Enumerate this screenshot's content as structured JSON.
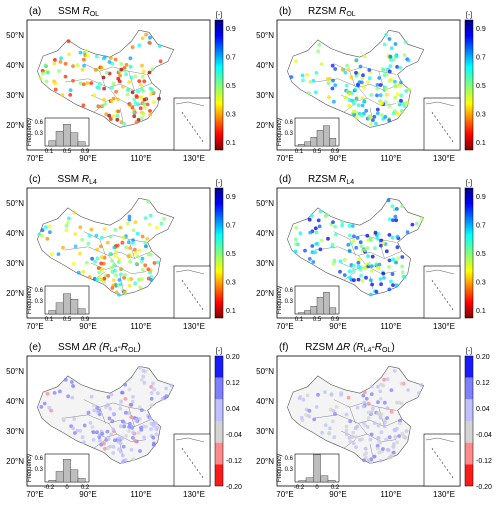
{
  "panels": [
    {
      "letter": "(a)",
      "var": "SSM",
      "metric": "R",
      "sub": "OL",
      "type": "R",
      "colorbar_unit": "[-]",
      "hist_ylabel": "Frequency",
      "hist_yticks": [
        "0.6",
        "0.3"
      ],
      "hist_xticks": [
        "0.1",
        "0.5",
        "0.9"
      ],
      "hist_values": [
        0.15,
        0.42,
        0.62,
        0.38,
        0.12
      ]
    },
    {
      "letter": "(b)",
      "var": "RZSM",
      "metric": "R",
      "sub": "OL",
      "type": "R",
      "colorbar_unit": "[-]",
      "hist_ylabel": "Frequency",
      "hist_yticks": [
        "0.6",
        "0.3"
      ],
      "hist_xticks": [
        "0.1",
        "0.5",
        "0.9"
      ],
      "hist_values": [
        0.05,
        0.12,
        0.25,
        0.45,
        0.58,
        0.22
      ]
    },
    {
      "letter": "(c)",
      "var": "SSM",
      "metric": "R",
      "sub": "L4",
      "type": "R",
      "colorbar_unit": "[-]",
      "hist_ylabel": "Frequency",
      "hist_yticks": [
        "0.6",
        "0.3"
      ],
      "hist_xticks": [
        "0.1",
        "0.5",
        "0.9"
      ],
      "hist_values": [
        0.1,
        0.32,
        0.58,
        0.42,
        0.15
      ]
    },
    {
      "letter": "(d)",
      "var": "RZSM",
      "metric": "R",
      "sub": "L4",
      "type": "R",
      "colorbar_unit": "[-]",
      "hist_ylabel": "Frequency",
      "hist_yticks": [
        "0.6",
        "0.3"
      ],
      "hist_xticks": [
        "0.1",
        "0.5",
        "0.9"
      ],
      "hist_values": [
        0.04,
        0.1,
        0.22,
        0.48,
        0.62,
        0.18
      ]
    },
    {
      "letter": "(e)",
      "var": "SSM",
      "metric": "ΔR",
      "sub": "",
      "expr": "(R",
      "expr_sub1": "L4",
      "expr_mid": "-R",
      "expr_sub2": "OL",
      "expr_end": ")",
      "type": "dR",
      "colorbar_unit": "[-]",
      "hist_ylabel": "Frequency",
      "hist_yticks": [
        "0.6",
        "0.3"
      ],
      "hist_xticks": [
        "-0.2",
        "0",
        "0.2"
      ],
      "hist_values": [
        0.05,
        0.3,
        0.65,
        0.35,
        0.1
      ]
    },
    {
      "letter": "(f)",
      "var": "RZSM",
      "metric": "ΔR",
      "sub": "",
      "expr": "(R",
      "expr_sub1": "L4",
      "expr_mid": "-R",
      "expr_sub2": "OL",
      "expr_end": ")",
      "type": "dR",
      "colorbar_unit": "[-]",
      "hist_ylabel": "Frequency",
      "hist_yticks": [
        "0.6",
        "0.3"
      ],
      "hist_xticks": [
        "-0.2",
        "0",
        "0.2"
      ],
      "hist_values": [
        0.04,
        0.12,
        0.78,
        0.18,
        0.05
      ]
    }
  ],
  "lat_ticks": [
    "50°N",
    "40°N",
    "30°N",
    "20°N"
  ],
  "lon_ticks": [
    "70°E",
    "90°E",
    "110°E",
    "130°E"
  ],
  "colorbar_R": {
    "ticks": [
      "0.9",
      "0.7",
      "0.5",
      "0.3",
      "0.1"
    ]
  },
  "colorbar_dR": {
    "ticks": [
      "0.20",
      "0.12",
      "0.04",
      "-0.04",
      "-0.12",
      "-0.20"
    ],
    "colors": [
      "#1a1aff",
      "#8080ff",
      "#c0c0ff",
      "#d3d3d3",
      "#ff8a8a",
      "#ff1a1a"
    ]
  }
}
